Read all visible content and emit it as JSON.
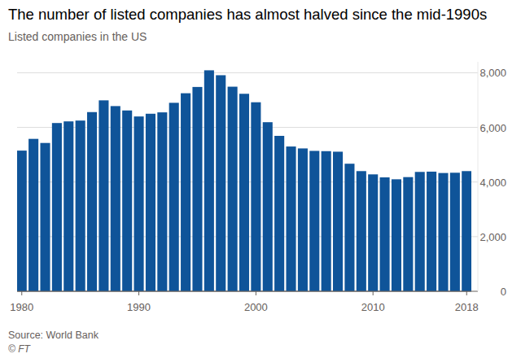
{
  "chart_data": {
    "type": "bar",
    "title": "The number of listed companies has almost halved since the mid-1990s",
    "subtitle": "Listed companies in the US",
    "source": "Source: World Bank",
    "credit": "© FT",
    "x": [
      1980,
      1981,
      1982,
      1983,
      1984,
      1985,
      1986,
      1987,
      1988,
      1989,
      1990,
      1991,
      1992,
      1993,
      1994,
      1995,
      1996,
      1997,
      1998,
      1999,
      2000,
      2001,
      2002,
      2003,
      2004,
      2005,
      2006,
      2007,
      2008,
      2009,
      2010,
      2011,
      2012,
      2013,
      2014,
      2015,
      2016,
      2017,
      2018
    ],
    "values": [
      5150,
      5580,
      5430,
      6160,
      6220,
      6250,
      6560,
      6990,
      6780,
      6620,
      6400,
      6500,
      6550,
      6900,
      7250,
      7480,
      8090,
      7910,
      7490,
      7230,
      6920,
      6190,
      5690,
      5300,
      5230,
      5140,
      5130,
      5110,
      4670,
      4400,
      4280,
      4170,
      4100,
      4180,
      4370,
      4380,
      4330,
      4340,
      4400
    ],
    "color": "#0f5499",
    "xlim": [
      1979.6,
      2018.4
    ],
    "xticks": [
      1980,
      1990,
      2000,
      2010,
      2018
    ],
    "ylim": [
      0,
      8400
    ],
    "yticks": [
      0,
      {
        "value": 2000,
        "label": "2,000"
      },
      {
        "value": 4000,
        "label": "4,000"
      },
      {
        "value": 6000,
        "label": "6,000"
      },
      {
        "value": 8000,
        "label": "8,000"
      }
    ],
    "grid": true
  }
}
